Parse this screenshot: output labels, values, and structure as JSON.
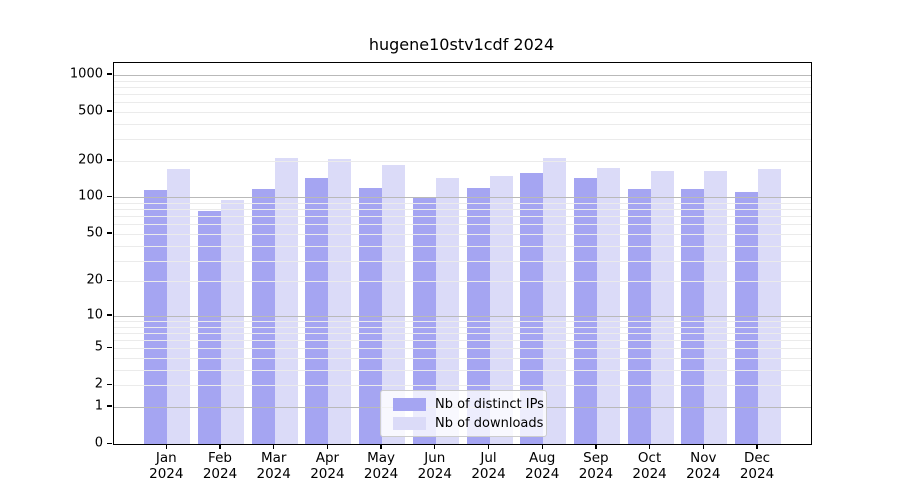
{
  "title": "hugene10stv1cdf 2024",
  "chart_data": {
    "type": "bar",
    "title": "hugene10stv1cdf 2024",
    "categories": [
      "Jan",
      "Feb",
      "Mar",
      "Apr",
      "May",
      "Jun",
      "Jul",
      "Aug",
      "Sep",
      "Oct",
      "Nov",
      "Dec"
    ],
    "category_year": "2024",
    "series": [
      {
        "name": "Nb of distinct IPs",
        "color": "#a5a5f2",
        "values": [
          115,
          78,
          118,
          145,
          120,
          100,
          120,
          160,
          145,
          117,
          118,
          111
        ]
      },
      {
        "name": "Nb of downloads",
        "color": "#dbdbf8",
        "values": [
          170,
          95,
          210,
          205,
          185,
          145,
          150,
          210,
          175,
          165,
          165,
          170
        ]
      }
    ],
    "xlabel": "",
    "ylabel": "",
    "y_scale": "log10(value+1)",
    "ylim": [
      0,
      1100
    ],
    "y_ticks": [
      1000,
      500,
      200,
      100,
      50,
      20,
      10,
      5,
      2,
      1,
      0
    ],
    "y_minor_gridlines": [
      2,
      3,
      4,
      5,
      6,
      7,
      8,
      9,
      20,
      30,
      40,
      50,
      60,
      70,
      80,
      90,
      200,
      300,
      400,
      500,
      600,
      700,
      800,
      900
    ],
    "y_major_gridlines": [
      1,
      10,
      100,
      1000
    ],
    "grid": true,
    "legend_position": "bottom-center-inside"
  }
}
